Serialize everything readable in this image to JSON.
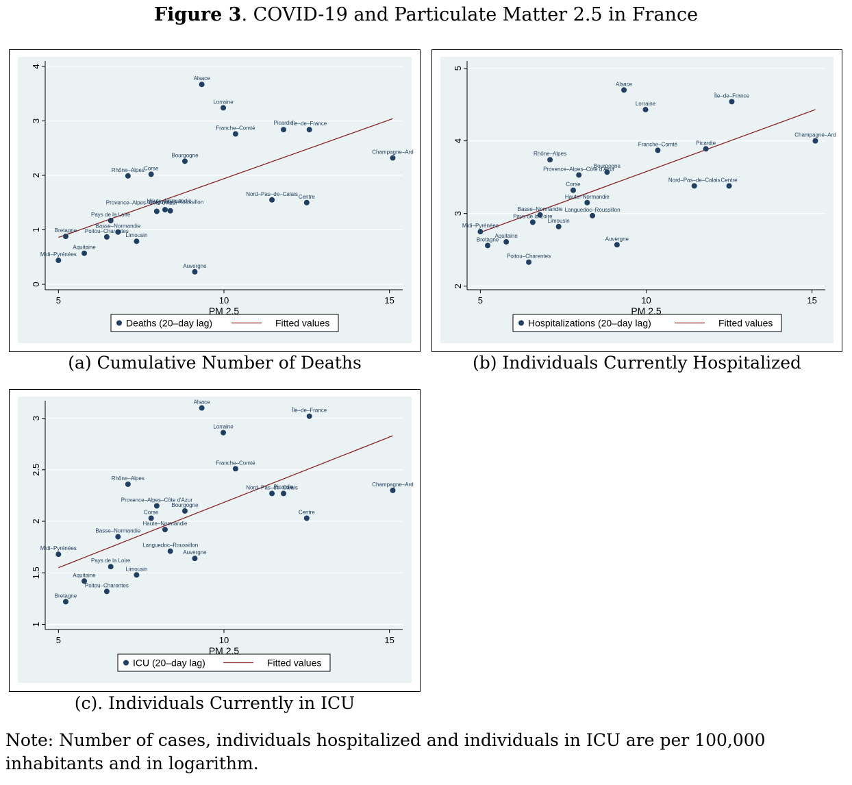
{
  "figure": {
    "title_bold": "Figure 3",
    "title_rest": ". COVID-19 and Particulate Matter 2.5 in France",
    "note": "Note: Number of cases, individuals hospitalized and individuals in ICU are per 100,000 inhabitants and in logarithm."
  },
  "colors": {
    "points": "#1f3f63",
    "fit": "#8b2323",
    "plot_bg": "#eaf2f3",
    "grid": "#ffffff"
  },
  "chart_data": [
    {
      "type": "scatter",
      "caption": "(a) Cumulative Number of Deaths",
      "xlabel": "PM 2.5",
      "ylabel": "",
      "xlim": [
        4.6,
        15.4
      ],
      "ylim": [
        -0.1,
        4.1
      ],
      "xticks": [
        5,
        10,
        15
      ],
      "yticks": [
        0,
        1,
        2,
        3,
        4
      ],
      "grid": true,
      "legend_position": "bottom",
      "series": [
        {
          "name": "Deaths (20–day lag)",
          "kind": "points",
          "points": [
            {
              "label": "Alsace",
              "x": 9.33,
              "y": 3.67
            },
            {
              "label": "Lorraine",
              "x": 9.98,
              "y": 3.24
            },
            {
              "label": "Franche–Comté",
              "x": 10.35,
              "y": 2.76
            },
            {
              "label": "Picardie",
              "x": 11.8,
              "y": 2.84
            },
            {
              "label": "Île–de–France",
              "x": 12.58,
              "y": 2.84
            },
            {
              "label": "Champagne–Ard",
              "x": 15.1,
              "y": 2.32
            },
            {
              "label": "Bourgogne",
              "x": 8.82,
              "y": 2.26
            },
            {
              "label": "Rhône–Alpes",
              "x": 7.1,
              "y": 1.99
            },
            {
              "label": "Corse",
              "x": 7.8,
              "y": 2.02
            },
            {
              "label": "Nord–Pas–de–Calais",
              "x": 11.45,
              "y": 1.55
            },
            {
              "label": "Centre",
              "x": 12.5,
              "y": 1.5
            },
            {
              "label": "Provence–Alpes–Côte d'Azur",
              "x": 7.97,
              "y": 1.34
            },
            {
              "label": "Haute–Normandie",
              "x": 8.22,
              "y": 1.37
            },
            {
              "label": "Languedoc–Roussillon",
              "x": 8.38,
              "y": 1.35
            },
            {
              "label": "Pays de la Loire",
              "x": 6.58,
              "y": 1.17
            },
            {
              "label": "Basse–Normandie",
              "x": 6.8,
              "y": 0.96
            },
            {
              "label": "Poitou–Charentes",
              "x": 6.46,
              "y": 0.87
            },
            {
              "label": "Limousin",
              "x": 7.36,
              "y": 0.79
            },
            {
              "label": "Bretagne",
              "x": 5.22,
              "y": 0.88
            },
            {
              "label": "Aquitaine",
              "x": 5.78,
              "y": 0.57
            },
            {
              "label": "Midi–Pyrénées",
              "x": 5.0,
              "y": 0.44
            },
            {
              "label": "Auvergne",
              "x": 9.12,
              "y": 0.23
            }
          ]
        },
        {
          "name": "Fitted values",
          "kind": "line",
          "x": [
            5,
            15.1
          ],
          "y": [
            0.86,
            3.04
          ]
        }
      ]
    },
    {
      "type": "scatter",
      "caption": "(b) Individuals Currently Hospitalized",
      "xlabel": "PM 2.5",
      "ylabel": "",
      "xlim": [
        4.6,
        15.4
      ],
      "ylim": [
        1.95,
        5.1
      ],
      "xticks": [
        5,
        10,
        15
      ],
      "yticks": [
        2,
        3,
        4,
        5
      ],
      "grid": true,
      "legend_position": "bottom",
      "series": [
        {
          "name": "Hospitalizations (20–day lag)",
          "kind": "points",
          "points": [
            {
              "label": "Alsace",
              "x": 9.33,
              "y": 4.7
            },
            {
              "label": "Lorraine",
              "x": 9.98,
              "y": 4.43
            },
            {
              "label": "Île–de–France",
              "x": 12.58,
              "y": 4.54
            },
            {
              "label": "Champagne–Ard",
              "x": 15.1,
              "y": 4.0
            },
            {
              "label": "Franche–Comté",
              "x": 10.35,
              "y": 3.87
            },
            {
              "label": "Picardie",
              "x": 11.8,
              "y": 3.89
            },
            {
              "label": "Rhône–Alpes",
              "x": 7.1,
              "y": 3.74
            },
            {
              "label": "Provence–Alpes–Côte d'Azur",
              "x": 7.97,
              "y": 3.53
            },
            {
              "label": "Bourgogne",
              "x": 8.82,
              "y": 3.57
            },
            {
              "label": "Corse",
              "x": 7.8,
              "y": 3.32
            },
            {
              "label": "Nord–Pas–de–Calais",
              "x": 11.45,
              "y": 3.38
            },
            {
              "label": "Centre",
              "x": 12.5,
              "y": 3.38
            },
            {
              "label": "Haute–Normandie",
              "x": 8.22,
              "y": 3.15
            },
            {
              "label": "Basse–Normandie",
              "x": 6.8,
              "y": 2.98
            },
            {
              "label": "Languedoc–Roussillon",
              "x": 8.38,
              "y": 2.97
            },
            {
              "label": "Pays de la Loire",
              "x": 6.58,
              "y": 2.88
            },
            {
              "label": "Limousin",
              "x": 7.36,
              "y": 2.82
            },
            {
              "label": "Midi–Pyrénées",
              "x": 5.0,
              "y": 2.75
            },
            {
              "label": "Bretagne",
              "x": 5.22,
              "y": 2.56
            },
            {
              "label": "Aquitaine",
              "x": 5.78,
              "y": 2.61
            },
            {
              "label": "Auvergne",
              "x": 9.12,
              "y": 2.57
            },
            {
              "label": "Poitou–Charentes",
              "x": 6.46,
              "y": 2.33
            }
          ]
        },
        {
          "name": "Fitted values",
          "kind": "line",
          "x": [
            5,
            15.1
          ],
          "y": [
            2.74,
            4.43
          ]
        }
      ]
    },
    {
      "type": "scatter",
      "caption": "(c). Individuals Currently in ICU",
      "xlabel": "PM 2.5",
      "ylabel": "",
      "xlim": [
        4.6,
        15.4
      ],
      "ylim": [
        0.95,
        3.17
      ],
      "xticks": [
        5,
        10,
        15
      ],
      "yticks": [
        1,
        1.5,
        2,
        2.5,
        3
      ],
      "grid": true,
      "legend_position": "bottom",
      "series": [
        {
          "name": "ICU (20–day lag)",
          "kind": "points",
          "points": [
            {
              "label": "Alsace",
              "x": 9.33,
              "y": 3.1
            },
            {
              "label": "Île–de–France",
              "x": 12.58,
              "y": 3.02
            },
            {
              "label": "Lorraine",
              "x": 9.98,
              "y": 2.86
            },
            {
              "label": "Franche–Comté",
              "x": 10.35,
              "y": 2.51
            },
            {
              "label": "Rhône–Alpes",
              "x": 7.1,
              "y": 2.36
            },
            {
              "label": "Champagne–Ard",
              "x": 15.1,
              "y": 2.3
            },
            {
              "label": "Nord–Pas–de–Calais",
              "x": 11.45,
              "y": 2.27
            },
            {
              "label": "Picardie",
              "x": 11.8,
              "y": 2.27
            },
            {
              "label": "Provence–Alpes–Côte d'Azur",
              "x": 7.97,
              "y": 2.15
            },
            {
              "label": "Bourgogne",
              "x": 8.82,
              "y": 2.1
            },
            {
              "label": "Corse",
              "x": 7.8,
              "y": 2.03
            },
            {
              "label": "Centre",
              "x": 12.5,
              "y": 2.03
            },
            {
              "label": "Haute–Normandie",
              "x": 8.22,
              "y": 1.92
            },
            {
              "label": "Basse–Normandie",
              "x": 6.8,
              "y": 1.85
            },
            {
              "label": "Languedoc–Roussillon",
              "x": 8.38,
              "y": 1.71
            },
            {
              "label": "Midi–Pyrénées",
              "x": 5.0,
              "y": 1.68
            },
            {
              "label": "Auvergne",
              "x": 9.12,
              "y": 1.64
            },
            {
              "label": "Pays de la Loire",
              "x": 6.58,
              "y": 1.56
            },
            {
              "label": "Limousin",
              "x": 7.36,
              "y": 1.48
            },
            {
              "label": "Aquitaine",
              "x": 5.78,
              "y": 1.42
            },
            {
              "label": "Poitou–Charentes",
              "x": 6.46,
              "y": 1.32
            },
            {
              "label": "Bretagne",
              "x": 5.22,
              "y": 1.22
            }
          ]
        },
        {
          "name": "Fitted values",
          "kind": "line",
          "x": [
            5,
            15.1
          ],
          "y": [
            1.55,
            2.83
          ]
        }
      ]
    }
  ]
}
